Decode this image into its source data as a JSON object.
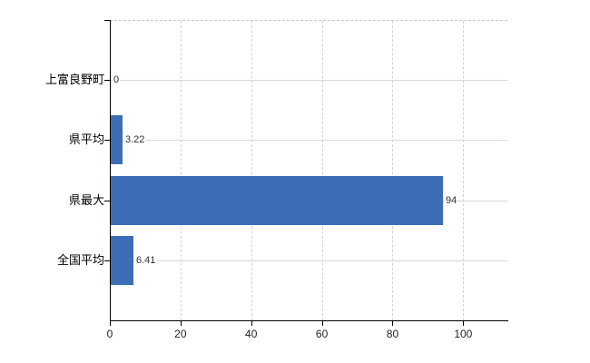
{
  "chart_data": {
    "type": "bar",
    "orientation": "horizontal",
    "title": "",
    "xlabel": "",
    "ylabel": "",
    "categories": [
      "上富良野町",
      "県平均",
      "県最大",
      "全国平均"
    ],
    "values": [
      0,
      3.22,
      94,
      6.41
    ],
    "value_labels": [
      "0",
      "3.22",
      "94",
      "6.41"
    ],
    "x_ticks": [
      0,
      20,
      40,
      60,
      80,
      100
    ],
    "xlim": [
      0,
      112.5
    ],
    "grid": "on",
    "legend": "none",
    "colors": {
      "bar": "#3d6db5",
      "axis": "#000000",
      "grid_horizontal": "#d3dad3",
      "grid_vertical": "#d5d2d7",
      "plot_top_border": "#c9c9c9",
      "category_label": "#000000",
      "value_label": "#333333",
      "x_tick_label": "#222222",
      "background": "#ffffff"
    }
  }
}
